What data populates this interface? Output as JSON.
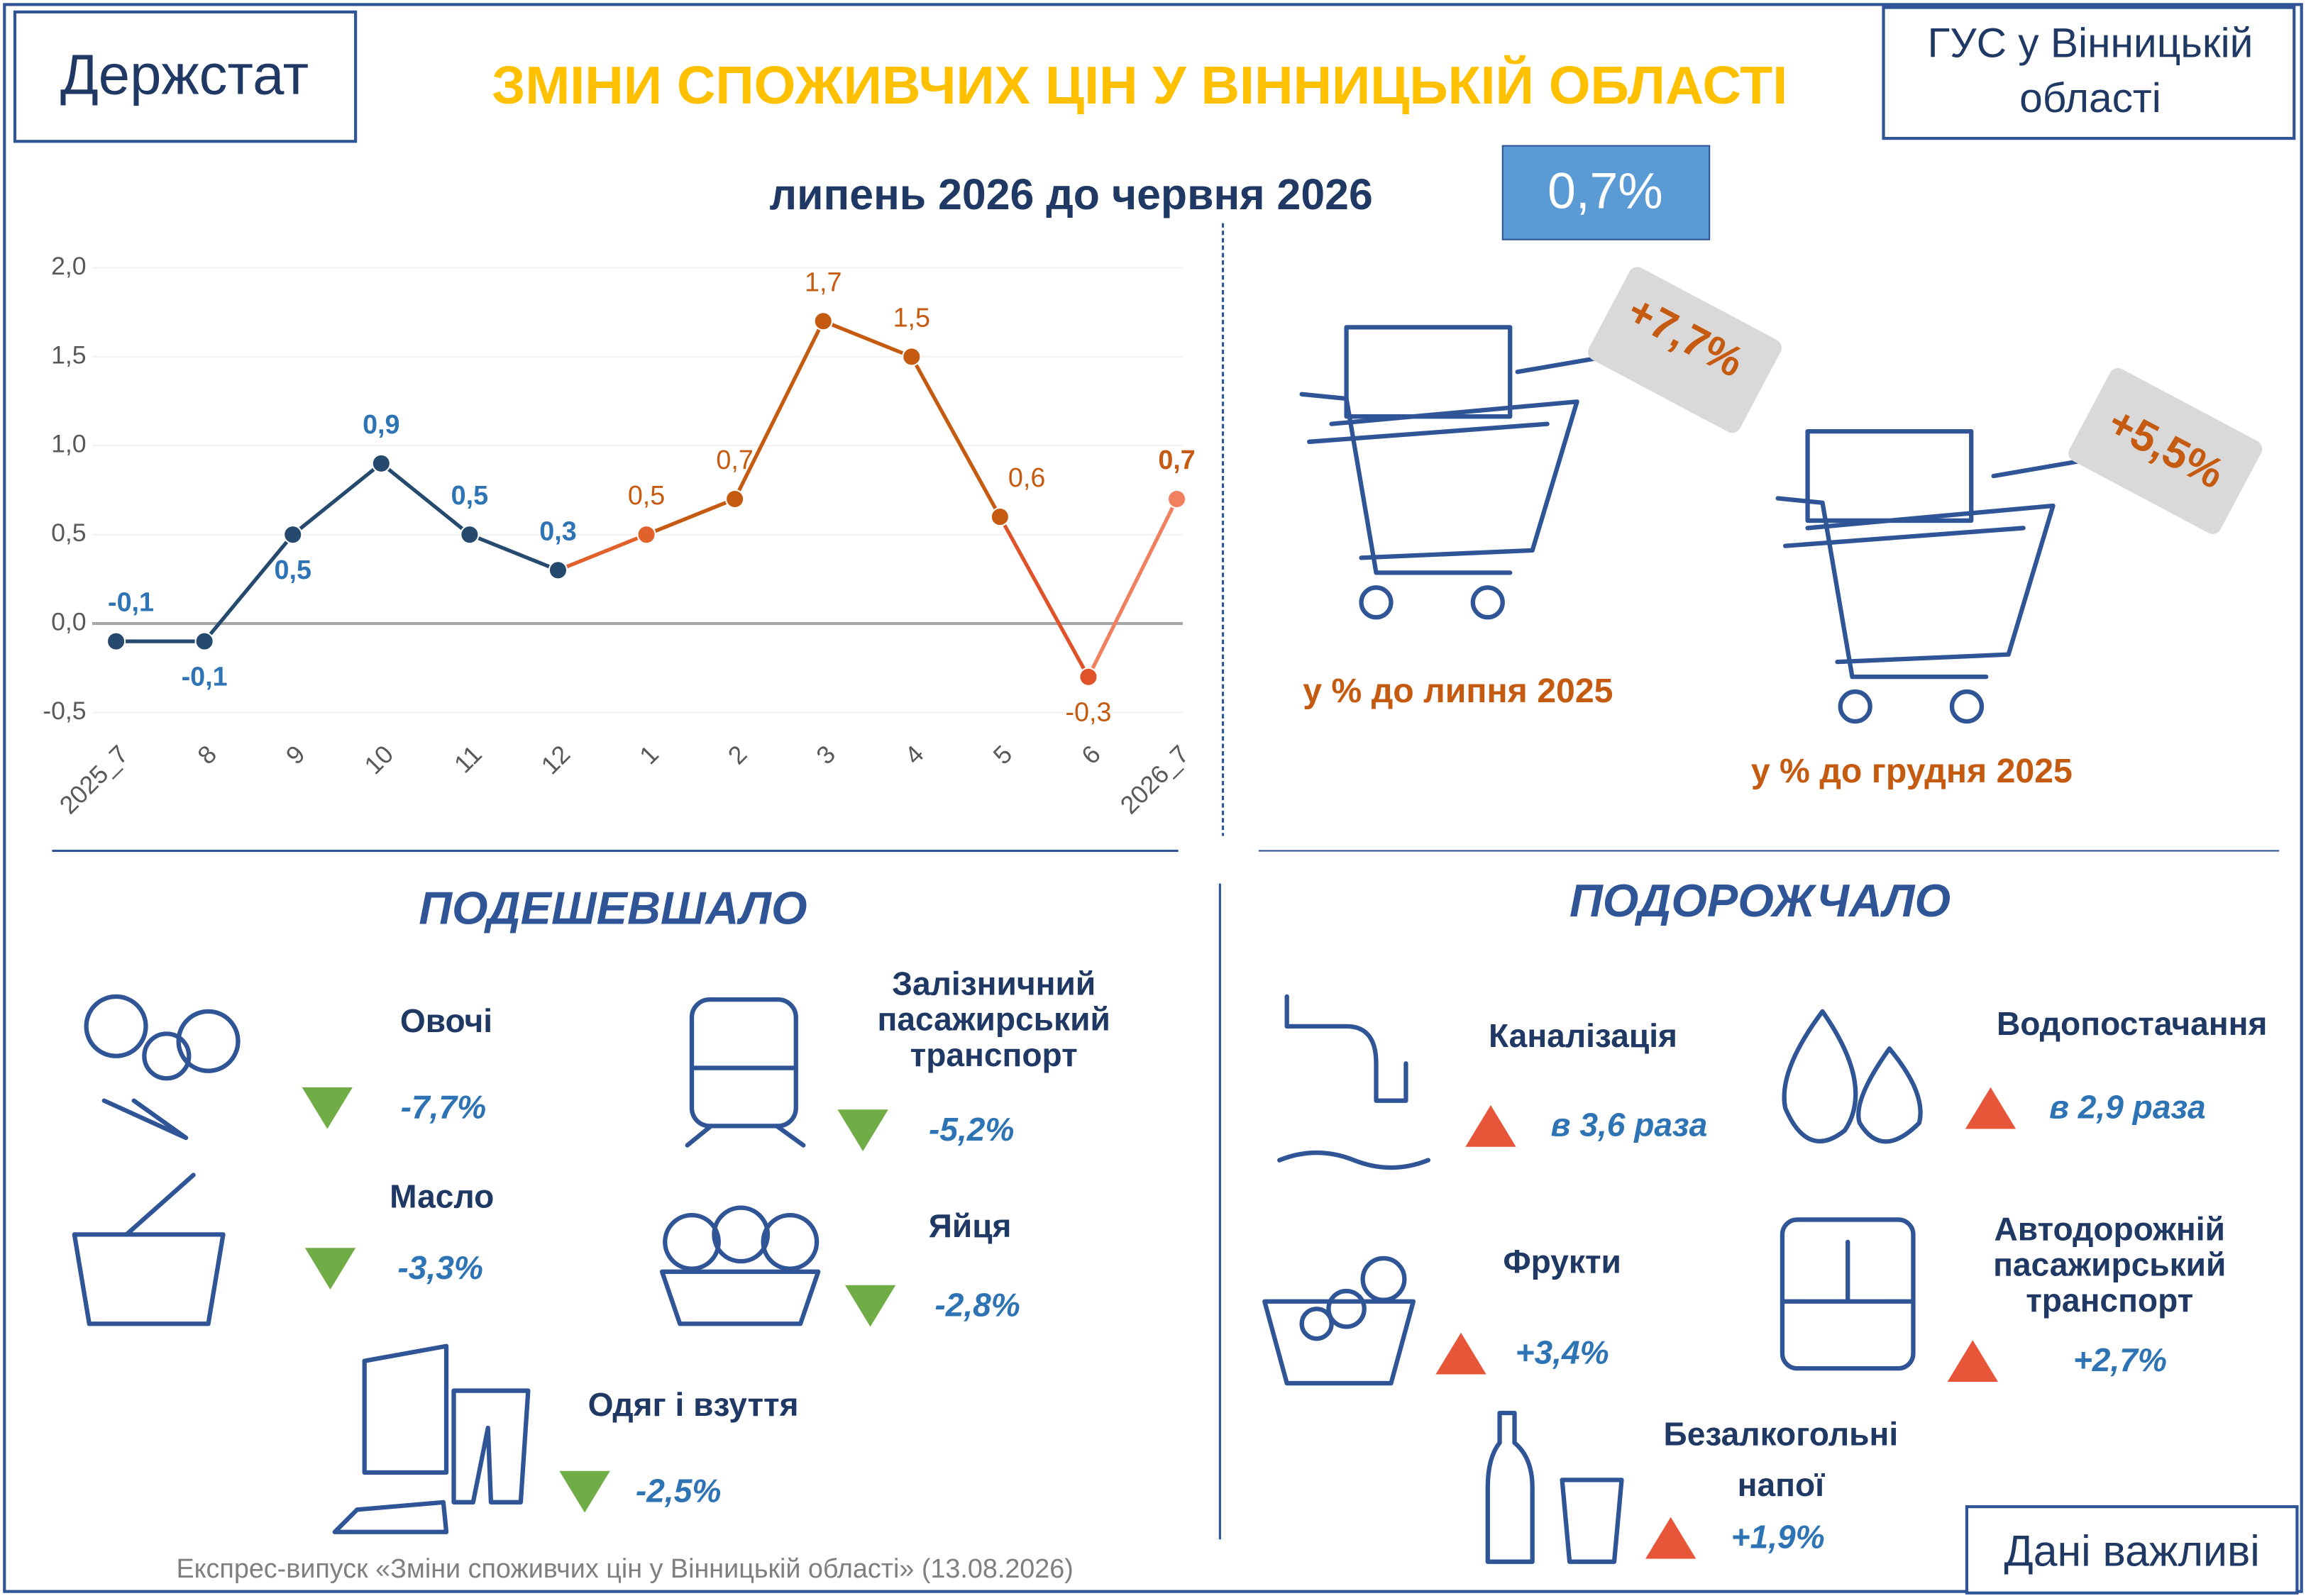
{
  "header": {
    "left": "Держстат",
    "title": "ЗМІНИ СПОЖИВЧИХ ЦІН У ВІННИЦЬКІЙ ОБЛАСТІ",
    "right": [
      "ГУС у Вінницькій",
      "області"
    ]
  },
  "chart_data": {
    "type": "line",
    "subtitle": "липень 2026 до червня 2026",
    "headline": "0,7%",
    "categories": [
      "2025_7",
      "8",
      "9",
      "10",
      "11",
      "12",
      "1",
      "2",
      "3",
      "4",
      "5",
      "6",
      "2026_7"
    ],
    "values": [
      -0.1,
      -0.1,
      0.5,
      0.9,
      0.5,
      0.3,
      0.5,
      0.7,
      1.7,
      1.5,
      0.6,
      -0.3,
      0.7
    ],
    "value_labels": [
      "-0,1",
      "-0,1",
      "0,5",
      "0,9",
      "0,5",
      "0,3",
      "0,5",
      "0,7",
      "1,7",
      "1,5",
      "0,6",
      "-0,3",
      "0,7"
    ],
    "colors": [
      "#264a6e",
      "#264a6e",
      "#264a6e",
      "#264a6e",
      "#264a6e",
      "#264a6e",
      "#e0622a",
      "#c55a11",
      "#c55a11",
      "#c55a11",
      "#c55a11",
      "#e0522a",
      "#f08060"
    ],
    "ylim": [
      -0.5,
      2.0
    ],
    "yticks": [
      {
        "value": -0.5,
        "label": "-0,5"
      },
      {
        "value": 0,
        "label": "0,0"
      },
      {
        "value": 0.5,
        "label": "0,5"
      },
      {
        "value": 1.0,
        "label": "1,0"
      },
      {
        "value": 1.5,
        "label": "1,5"
      },
      {
        "value": 2.0,
        "label": "2,0"
      }
    ]
  },
  "yearly": [
    {
      "value": "+7,7%",
      "caption": "у % до липня 2025"
    },
    {
      "value": "+5,5%",
      "caption": "у % до грудня 2025"
    }
  ],
  "cheaper": {
    "title": "ПОДЕШЕВШАЛО",
    "items": [
      {
        "name": [
          "Овочі"
        ],
        "change": "-7,7%"
      },
      {
        "name": [
          "Залізничний",
          "пасажирський",
          "транспорт"
        ],
        "change": "-5,2%"
      },
      {
        "name": [
          "Масло"
        ],
        "change": "-3,3%"
      },
      {
        "name": [
          "Яйця"
        ],
        "change": "-2,8%"
      },
      {
        "name": [
          "Одяг і взуття"
        ],
        "change": "-2,5%"
      }
    ]
  },
  "pricier": {
    "title": "ПОДОРОЖЧАЛО",
    "items": [
      {
        "name": [
          "Каналізація"
        ],
        "change": "в 3,6 раза"
      },
      {
        "name": [
          "Водопостачання"
        ],
        "change": "в 2,9 раза"
      },
      {
        "name": [
          "Фрукти"
        ],
        "change": "+3,4%"
      },
      {
        "name": [
          "Автодорожній",
          "пасажирський",
          "транспорт"
        ],
        "change": "+2,7%"
      },
      {
        "name": [
          "Безалкогольні",
          "напої"
        ],
        "change": "+1,9%"
      }
    ]
  },
  "footer": {
    "note": "Експрес-випуск «Зміни споживчих цін у Вінницькій області» (13.08.2026)",
    "badge": "Дані важливі"
  }
}
